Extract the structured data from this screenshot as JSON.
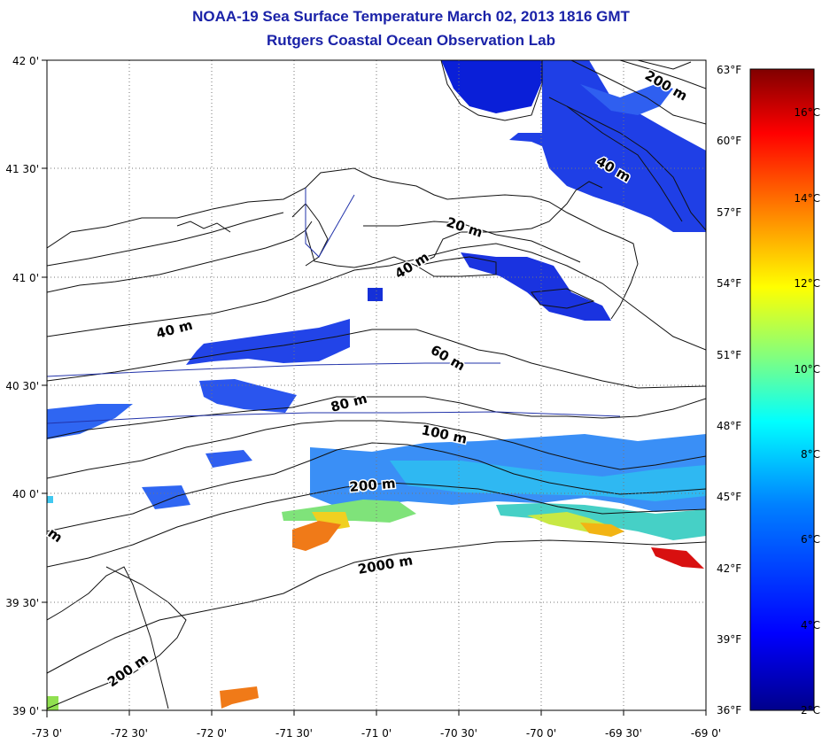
{
  "title": {
    "line1": "NOAA-19 Sea Surface Temperature March 02, 2013 1816 GMT",
    "line2": "Rutgers Coastal Ocean Observation Lab"
  },
  "map": {
    "lat_labels": [
      "42 0'",
      "41 30'",
      "41 0'",
      "40 30'",
      "40 0'",
      "39 30'",
      "39 0'"
    ],
    "lon_labels": [
      "-73 0'",
      "-72 30'",
      "-72 0'",
      "-71 30'",
      "-71 0'",
      "-70 30'",
      "-70 0'",
      "-69 30'",
      "-69 0'"
    ],
    "lat_range": [
      39.0,
      42.0
    ],
    "lon_range": [
      -73.0,
      -69.0
    ],
    "grid": "dotted",
    "colors": {
      "coast": "#111111",
      "grid": "#777777",
      "transect": "#2233aa"
    }
  },
  "contours": {
    "labels": [
      "20 m",
      "40 m",
      "40 m",
      "40 m",
      "60 m",
      "80 m",
      "100 m",
      "200 m",
      "200 m",
      "200 m",
      "2000 m",
      "m"
    ]
  },
  "colorbar": {
    "fahrenheit_labels": [
      "63°F",
      "60°F",
      "57°F",
      "54°F",
      "51°F",
      "48°F",
      "45°F",
      "42°F",
      "39°F",
      "36°F"
    ],
    "celsius_labels": [
      "16°C",
      "14°C",
      "12°C",
      "10°C",
      "8°C",
      "6°C",
      "4°C",
      "2°C"
    ],
    "range_celsius": [
      2,
      17.2
    ],
    "stops": [
      "#00008b",
      "#0000ff",
      "#0080ff",
      "#00ffff",
      "#80ff80",
      "#ffff00",
      "#ff8000",
      "#ff0000",
      "#800000"
    ]
  }
}
